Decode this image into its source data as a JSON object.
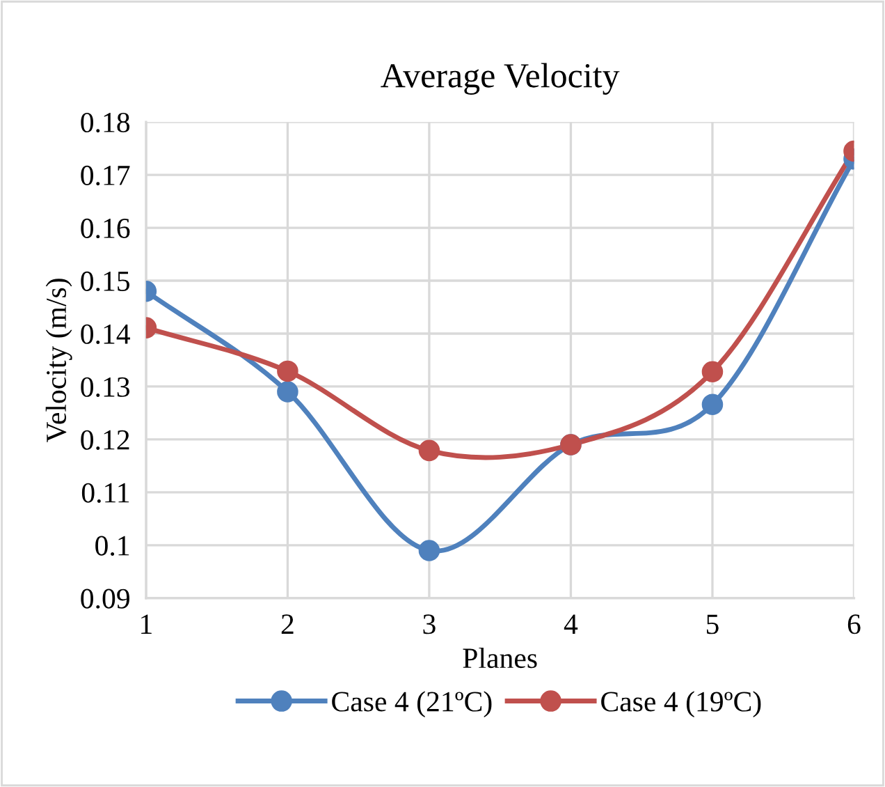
{
  "chart_data": {
    "type": "line",
    "title": "Average Velocity",
    "xlabel": "Planes",
    "ylabel": "Velocity (m/s)",
    "x": [
      1,
      2,
      3,
      4,
      5,
      6
    ],
    "series": [
      {
        "name": "Case 4 (21ºC)",
        "color": "#4f81bd",
        "values": [
          0.148,
          0.129,
          0.099,
          0.119,
          0.1266,
          0.173
        ]
      },
      {
        "name": "Case 4 (19ºC)",
        "color": "#c0504d",
        "values": [
          0.1411,
          0.1329,
          0.1179,
          0.119,
          0.1328,
          0.1745
        ]
      }
    ],
    "xlim": [
      1,
      6
    ],
    "xticks": [
      1,
      2,
      3,
      4,
      5,
      6
    ],
    "ylim": [
      0.09,
      0.18
    ],
    "yticks": [
      {
        "value": 0.09,
        "label": "0.09"
      },
      {
        "value": 0.1,
        "label": "0.1"
      },
      {
        "value": 0.11,
        "label": "0.11"
      },
      {
        "value": 0.12,
        "label": "0.12"
      },
      {
        "value": 0.13,
        "label": "0.13"
      },
      {
        "value": 0.14,
        "label": "0.14"
      },
      {
        "value": 0.15,
        "label": "0.15"
      },
      {
        "value": 0.16,
        "label": "0.16"
      },
      {
        "value": 0.17,
        "label": "0.17"
      },
      {
        "value": 0.18,
        "label": "0.18"
      }
    ],
    "grid": true,
    "legend": "bottom",
    "marker": "circle",
    "line_style": "solid"
  }
}
